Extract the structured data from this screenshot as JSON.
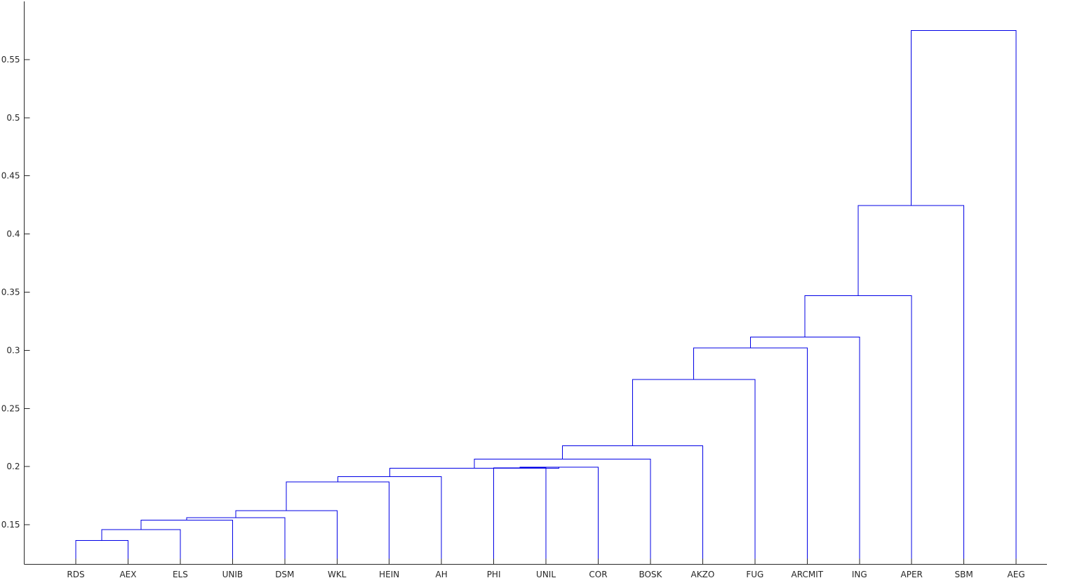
{
  "chart_data": {
    "type": "dendrogram",
    "leaves": [
      "RDS",
      "AEX",
      "ELS",
      "UNIB",
      "DSM",
      "WKL",
      "HEIN",
      "AH",
      "PHI",
      "UNIL",
      "COR",
      "BOSK",
      "AKZO",
      "FUG",
      "ARCMIT",
      "ING",
      "APER",
      "SBM",
      "AEG"
    ],
    "merges": [
      {
        "left": "RDS",
        "right": "AEX",
        "height": 0.1365
      },
      {
        "left": 0,
        "right": "ELS",
        "height": 0.146
      },
      {
        "left": 1,
        "right": "UNIB",
        "height": 0.154
      },
      {
        "left": 2,
        "right": "DSM",
        "height": 0.156
      },
      {
        "left": 3,
        "right": "WKL",
        "height": 0.162
      },
      {
        "left": 4,
        "right": "HEIN",
        "height": 0.187
      },
      {
        "left": 5,
        "right": "AH",
        "height": 0.1915
      },
      {
        "left": "PHI",
        "right": "UNIL",
        "height": 0.199
      },
      {
        "left": 7,
        "right": "COR",
        "height": 0.1995
      },
      {
        "left": 6,
        "right": 8,
        "height": 0.1985
      },
      {
        "left": 9,
        "right": "BOSK",
        "height": 0.2065
      },
      {
        "left": 10,
        "right": "AKZO",
        "height": 0.218
      },
      {
        "left": 11,
        "right": "FUG",
        "height": 0.275
      },
      {
        "left": 12,
        "right": "ARCMIT",
        "height": 0.302
      },
      {
        "left": 13,
        "right": "ING",
        "height": 0.3115
      },
      {
        "left": 14,
        "right": "APER",
        "height": 0.347
      },
      {
        "left": 15,
        "right": "SBM",
        "height": 0.4245
      },
      {
        "left": 16,
        "right": "AEG",
        "height": 0.575
      }
    ],
    "y_ticks": [
      "0.15",
      "0.2",
      "0.25",
      "0.3",
      "0.35",
      "0.4",
      "0.45",
      "0.5",
      "0.55"
    ],
    "ylim": [
      0.116,
      0.6
    ],
    "title": "",
    "xlabel": "",
    "ylabel": "",
    "grid": false,
    "link_color": "#0000e6",
    "axis_color": "#262626"
  }
}
